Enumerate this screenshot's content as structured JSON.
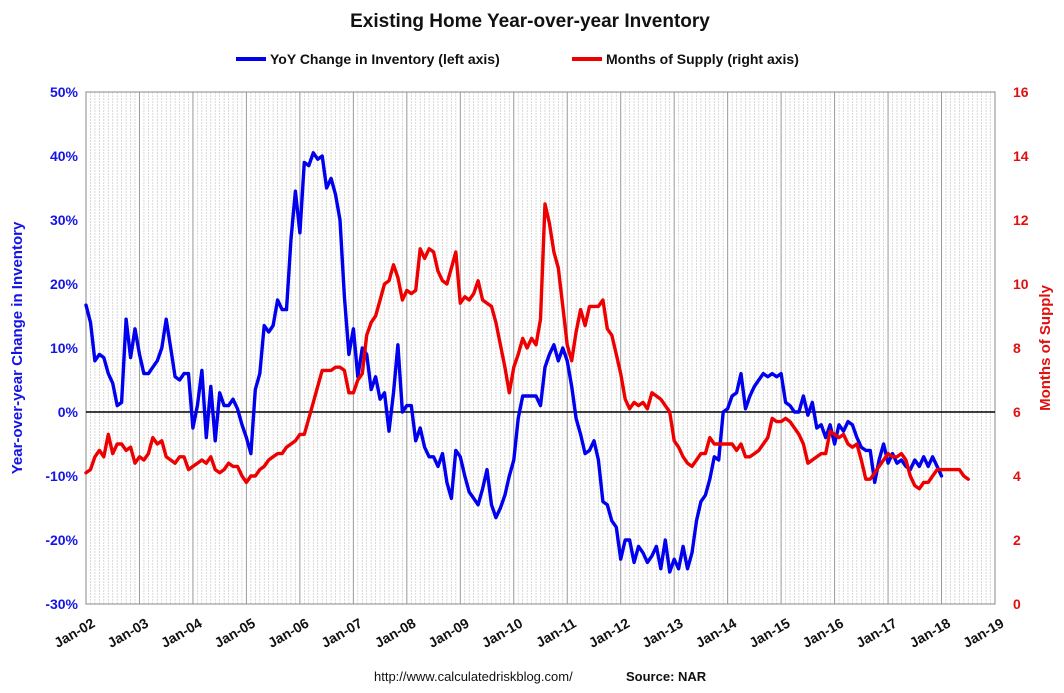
{
  "chart_data": {
    "type": "line",
    "title": "Existing Home Year-over-year Inventory",
    "ylabel_left": "Year-over-year Change in Inventory",
    "ylabel_right": "Months of Supply",
    "x_range": [
      "Jan-02",
      "Jan-19"
    ],
    "y_left_range": [
      -0.3,
      0.5
    ],
    "y_right_range": [
      0,
      16
    ],
    "grid": "vertical monthly gridlines",
    "legend_placement": "top",
    "x_tick_labels": [
      "Jan-02",
      "Jan-03",
      "Jan-04",
      "Jan-05",
      "Jan-06",
      "Jan-07",
      "Jan-08",
      "Jan-09",
      "Jan-10",
      "Jan-11",
      "Jan-12",
      "Jan-13",
      "Jan-14",
      "Jan-15",
      "Jan-16",
      "Jan-17",
      "Jan-18",
      "Jan-19"
    ],
    "y_left_tick_labels": [
      "50%",
      "40%",
      "30%",
      "20%",
      "10%",
      "0%",
      "-10%",
      "-20%",
      "-30%"
    ],
    "y_right_tick_labels": [
      "16",
      "14",
      "12",
      "10",
      "8",
      "6",
      "4",
      "2",
      "0"
    ],
    "start_month": "Jan-02",
    "series": [
      {
        "name": "YoY Change in Inventory (left axis)",
        "axis": "left",
        "color": "#0000ee",
        "values": [
          0.167,
          0.14,
          0.08,
          0.09,
          0.085,
          0.06,
          0.045,
          0.01,
          0.015,
          0.145,
          0.085,
          0.13,
          0.09,
          0.06,
          0.06,
          0.07,
          0.08,
          0.1,
          0.145,
          0.1,
          0.055,
          0.05,
          0.06,
          0.06,
          -0.025,
          0.01,
          0.065,
          -0.04,
          0.04,
          -0.045,
          0.03,
          0.01,
          0.01,
          0.02,
          0.005,
          -0.02,
          -0.04,
          -0.065,
          0.035,
          0.06,
          0.135,
          0.125,
          0.135,
          0.175,
          0.16,
          0.16,
          0.27,
          0.345,
          0.28,
          0.39,
          0.385,
          0.405,
          0.395,
          0.4,
          0.35,
          0.365,
          0.34,
          0.3,
          0.18,
          0.09,
          0.13,
          0.055,
          0.1,
          0.09,
          0.035,
          0.055,
          0.02,
          0.03,
          -0.03,
          0.03,
          0.105,
          0.0,
          0.01,
          0.01,
          -0.045,
          -0.025,
          -0.055,
          -0.07,
          -0.07,
          -0.085,
          -0.065,
          -0.11,
          -0.135,
          -0.06,
          -0.07,
          -0.1,
          -0.125,
          -0.135,
          -0.145,
          -0.12,
          -0.09,
          -0.145,
          -0.165,
          -0.15,
          -0.13,
          -0.1,
          -0.075,
          -0.01,
          0.025,
          0.025,
          0.025,
          0.025,
          0.01,
          0.07,
          0.09,
          0.105,
          0.08,
          0.1,
          0.08,
          0.04,
          -0.01,
          -0.035,
          -0.065,
          -0.06,
          -0.045,
          -0.075,
          -0.14,
          -0.145,
          -0.17,
          -0.18,
          -0.23,
          -0.2,
          -0.2,
          -0.235,
          -0.21,
          -0.22,
          -0.235,
          -0.225,
          -0.21,
          -0.245,
          -0.2,
          -0.25,
          -0.23,
          -0.245,
          -0.21,
          -0.245,
          -0.22,
          -0.17,
          -0.14,
          -0.13,
          -0.105,
          -0.07,
          -0.075,
          0.0,
          0.005,
          0.025,
          0.03,
          0.06,
          0.005,
          0.025,
          0.04,
          0.05,
          0.06,
          0.055,
          0.06,
          0.055,
          0.06,
          0.015,
          0.01,
          0.0,
          0.0,
          0.025,
          -0.005,
          0.015,
          -0.025,
          -0.02,
          -0.04,
          -0.02,
          -0.05,
          -0.02,
          -0.03,
          -0.015,
          -0.02,
          -0.04,
          -0.055,
          -0.06,
          -0.06,
          -0.11,
          -0.075,
          -0.05,
          -0.08,
          -0.065,
          -0.08,
          -0.075,
          -0.085,
          -0.09,
          -0.075,
          -0.085,
          -0.07,
          -0.085,
          -0.07,
          -0.085,
          -0.1
        ]
      },
      {
        "name": "Months of Supply (right axis)",
        "axis": "right",
        "color": "#ee0000",
        "values": [
          4.1,
          4.2,
          4.6,
          4.8,
          4.6,
          5.3,
          4.7,
          5.0,
          5.0,
          4.8,
          4.9,
          4.4,
          4.6,
          4.5,
          4.7,
          5.2,
          5.0,
          5.1,
          4.6,
          4.5,
          4.4,
          4.6,
          4.6,
          4.2,
          4.3,
          4.4,
          4.5,
          4.4,
          4.6,
          4.2,
          4.1,
          4.2,
          4.4,
          4.3,
          4.3,
          4.0,
          3.8,
          4.0,
          4.0,
          4.2,
          4.3,
          4.5,
          4.6,
          4.7,
          4.7,
          4.9,
          5.0,
          5.1,
          5.3,
          5.3,
          5.8,
          6.3,
          6.8,
          7.3,
          7.3,
          7.3,
          7.4,
          7.4,
          7.3,
          6.6,
          6.6,
          7.0,
          7.2,
          8.4,
          8.8,
          9.0,
          9.5,
          10.0,
          10.1,
          10.6,
          10.2,
          9.5,
          9.8,
          9.7,
          9.8,
          11.1,
          10.8,
          11.1,
          11.0,
          10.4,
          10.1,
          10.0,
          10.5,
          11.0,
          9.4,
          9.6,
          9.5,
          9.7,
          10.1,
          9.5,
          9.4,
          9.3,
          8.8,
          8.1,
          7.4,
          6.6,
          7.4,
          7.8,
          8.3,
          8.0,
          8.3,
          8.1,
          8.9,
          12.5,
          11.9,
          11.0,
          10.5,
          9.3,
          8.1,
          7.6,
          8.5,
          9.2,
          8.7,
          9.3,
          9.3,
          9.3,
          9.5,
          8.6,
          8.4,
          7.8,
          7.2,
          6.4,
          6.1,
          6.3,
          6.2,
          6.3,
          6.1,
          6.6,
          6.5,
          6.4,
          6.2,
          6.0,
          5.1,
          4.9,
          4.6,
          4.4,
          4.3,
          4.5,
          4.7,
          4.7,
          5.2,
          5.0,
          5.0,
          5.0,
          5.0,
          5.0,
          4.8,
          5.0,
          4.6,
          4.6,
          4.7,
          4.8,
          5.0,
          5.2,
          5.8,
          5.7,
          5.7,
          5.8,
          5.7,
          5.5,
          5.3,
          5.0,
          4.4,
          4.5,
          4.6,
          4.7,
          4.7,
          5.4,
          5.3,
          5.2,
          5.3,
          5.0,
          4.9,
          5.0,
          4.5,
          3.9,
          3.9,
          4.1,
          4.3,
          4.5,
          4.7,
          4.6,
          4.6,
          4.7,
          4.5,
          4.0,
          3.7,
          3.6,
          3.8,
          3.8,
          4.0,
          4.2,
          4.2,
          4.2,
          4.2,
          4.2,
          4.2,
          4.0,
          3.9
        ]
      }
    ]
  },
  "footer": {
    "url": "http://www.calculatedriskblog.com/",
    "source": "Source: NAR"
  }
}
